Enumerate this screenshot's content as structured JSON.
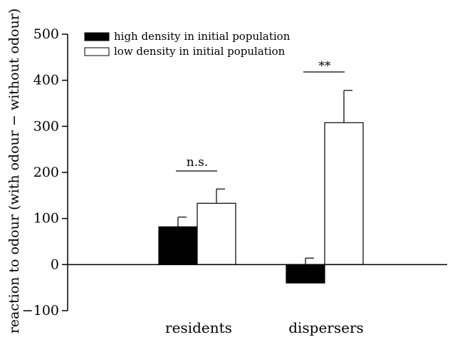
{
  "chart_data": {
    "type": "bar",
    "title": "",
    "xlabel": "",
    "ylabel": "reaction to odour (with odour − without odour)",
    "ylim": [
      -100,
      500
    ],
    "yticks": [
      -100,
      0,
      100,
      200,
      300,
      400,
      500
    ],
    "ytick_labels": [
      "−100",
      "0",
      "100",
      "200",
      "300",
      "400",
      "500"
    ],
    "categories": [
      "residents",
      "dispersers"
    ],
    "series": [
      {
        "name": "high density in initial population",
        "color": "#000000",
        "values": [
          82,
          -40
        ],
        "error_upper": [
          103,
          14
        ]
      },
      {
        "name": "low density in initial population",
        "color": "#ffffff",
        "values": [
          133,
          308
        ],
        "error_upper": [
          164,
          378
        ]
      }
    ],
    "annotations": [
      {
        "category": "residents",
        "text": "n.s."
      },
      {
        "category": "dispersers",
        "text": "**"
      }
    ],
    "legend": "top-left",
    "grid": false
  }
}
